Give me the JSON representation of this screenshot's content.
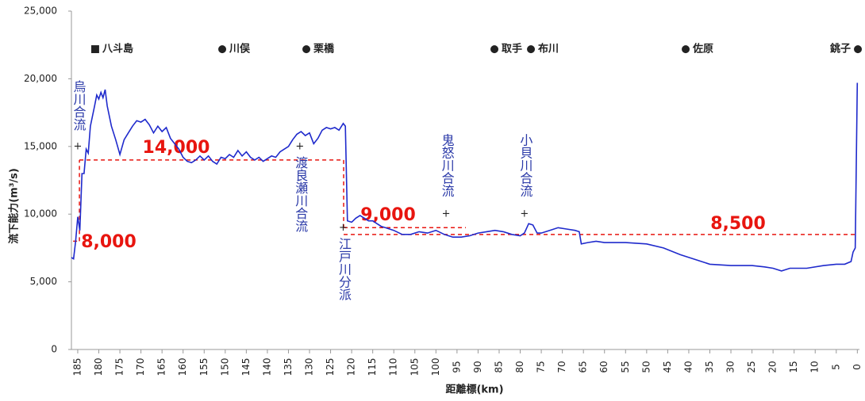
{
  "chart_data": {
    "type": "line",
    "x_label": "距離標(km)",
    "y_label": "流下能力(m³/s)",
    "xlim": [
      186.5,
      -0.5
    ],
    "ylim": [
      0,
      25000
    ],
    "xticks": [
      185,
      180,
      175,
      170,
      165,
      160,
      155,
      150,
      145,
      140,
      135,
      130,
      125,
      120,
      115,
      110,
      105,
      100,
      95,
      90,
      85,
      80,
      75,
      70,
      65,
      60,
      55,
      50,
      45,
      40,
      35,
      30,
      25,
      20,
      15,
      10,
      5,
      0
    ],
    "yticks": [
      0,
      {
        "value": 5000,
        "label": "5,000"
      },
      {
        "value": 10000,
        "label": "10,000"
      },
      {
        "value": 15000,
        "label": "15,000"
      },
      {
        "value": 20000,
        "label": "20,000"
      },
      {
        "value": 25000,
        "label": "25,000"
      }
    ],
    "grid": false,
    "x": [
      186.5,
      186,
      185.5,
      185,
      184.5,
      184,
      183.5,
      183,
      182.5,
      182,
      181,
      180.5,
      180,
      179.5,
      179,
      178.5,
      178,
      177,
      176,
      175,
      174,
      173,
      172,
      171,
      170,
      169,
      168,
      167,
      166,
      165,
      164,
      163,
      162,
      161,
      160,
      159,
      158,
      157,
      156,
      155,
      154,
      153,
      152,
      151,
      150,
      149,
      148,
      147,
      146,
      145,
      144,
      143,
      142,
      141,
      140,
      139,
      138,
      137,
      136,
      135,
      134,
      133,
      132,
      131,
      130,
      129,
      128,
      127,
      126,
      125,
      124,
      123,
      122,
      121.5,
      121,
      120,
      119,
      118,
      117,
      116,
      115,
      114,
      113,
      112,
      111,
      110,
      108,
      106,
      104,
      102,
      100,
      98,
      96,
      94,
      92,
      90,
      88,
      86,
      84,
      82,
      80,
      79,
      78,
      77,
      76,
      75,
      73,
      71,
      69,
      67,
      66,
      65.5,
      64,
      62,
      60,
      55,
      50,
      46,
      42,
      38,
      35,
      30,
      25,
      22,
      20,
      18,
      16,
      12,
      8,
      5,
      3,
      1.5,
      1,
      0.5,
      0
    ],
    "series": [
      {
        "name": "流下能力",
        "color": "#1f2acc",
        "values": [
          6800,
          6700,
          8000,
          9800,
          8800,
          13000,
          13000,
          14800,
          14500,
          16500,
          18000,
          18800,
          18500,
          19000,
          18600,
          19200,
          18000,
          16500,
          15500,
          14400,
          15500,
          16000,
          16500,
          16900,
          16800,
          17000,
          16600,
          16000,
          16500,
          16100,
          16400,
          15600,
          15200,
          14800,
          14200,
          13900,
          13800,
          14000,
          14300,
          14000,
          14300,
          13900,
          13700,
          14200,
          14100,
          14400,
          14200,
          14700,
          14300,
          14600,
          14200,
          14000,
          14200,
          13900,
          14100,
          14300,
          14200,
          14600,
          14800,
          15000,
          15500,
          15900,
          16100,
          15800,
          16000,
          15200,
          15600,
          16200,
          16400,
          16300,
          16400,
          16200,
          16700,
          16500,
          9500,
          9400,
          9700,
          9900,
          9700,
          9500,
          9500,
          9300,
          9100,
          9000,
          8900,
          8800,
          8500,
          8500,
          8700,
          8600,
          8800,
          8500,
          8300,
          8300,
          8400,
          8600,
          8700,
          8800,
          8700,
          8500,
          8400,
          8600,
          9300,
          9200,
          8600,
          8600,
          8800,
          9000,
          8900,
          8800,
          8700,
          7800,
          7900,
          8000,
          7900,
          7900,
          7800,
          7500,
          7000,
          6600,
          6300,
          6200,
          6200,
          6100,
          6000,
          5800,
          6000,
          6000,
          6200,
          6300,
          6300,
          6500,
          7200,
          7500,
          19700
        ]
      }
    ],
    "reference_lines": {
      "color": "#e8150f",
      "values": [
        8000,
        14000,
        9000,
        8500
      ],
      "value_labels": [
        "8,000",
        "14,000",
        "9,000",
        "8,500"
      ],
      "x_start": [
        186.1,
        184.6,
        121.9,
        121.9
      ],
      "x_end": [
        184.6,
        121.9,
        92.9,
        0
      ]
    },
    "places": [
      "八斗島",
      "川俣",
      "栗橋",
      "取手",
      "布川",
      "佐原",
      "銚子"
    ],
    "annotations": [
      {
        "text": "烏川合流",
        "x": 185,
        "y": 15000
      },
      {
        "text": "渡良瀬川合流",
        "x": 132.3,
        "y": 15000
      },
      {
        "text": "江戸川分派",
        "x": 122,
        "y": 9000
      },
      {
        "text": "鬼怒川合流",
        "x": 97.6,
        "y": 10000
      },
      {
        "text": "小貝川合流",
        "x": 79,
        "y": 10000
      }
    ]
  }
}
